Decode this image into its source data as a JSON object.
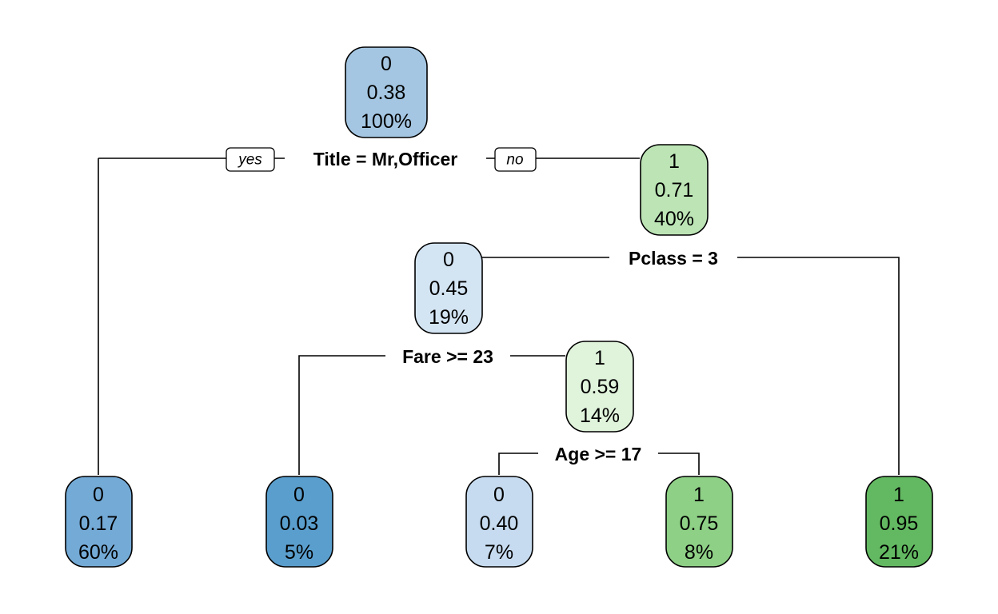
{
  "tree": {
    "nodes": {
      "root": {
        "class": "0",
        "prob": "0.38",
        "pct": "100%",
        "fill": "#a4c6e2"
      },
      "n_left": {
        "class": "0",
        "prob": "0.17",
        "pct": "60%",
        "fill": "#74aad6"
      },
      "n_right": {
        "class": "1",
        "prob": "0.71",
        "pct": "40%",
        "fill": "#bce4b5"
      },
      "n_pclass_left": {
        "class": "0",
        "prob": "0.45",
        "pct": "19%",
        "fill": "#d3e4f3"
      },
      "n_fare_left": {
        "class": "0",
        "prob": "0.03",
        "pct": "5%",
        "fill": "#5a9ecd"
      },
      "n_fare_right": {
        "class": "1",
        "prob": "0.59",
        "pct": "14%",
        "fill": "#e0f3db"
      },
      "n_age_left": {
        "class": "0",
        "prob": "0.40",
        "pct": "7%",
        "fill": "#c6dbef"
      },
      "n_age_right": {
        "class": "1",
        "prob": "0.75",
        "pct": "8%",
        "fill": "#8ed086"
      },
      "n_pclass_right": {
        "class": "1",
        "prob": "0.95",
        "pct": "21%",
        "fill": "#63b961"
      }
    },
    "splits": {
      "title": "Title =  Mr,Officer",
      "pclass": "Pclass = 3",
      "fare": "Fare >= 23",
      "age": "Age >= 17"
    },
    "branch_labels": {
      "yes": "yes",
      "no": "no"
    }
  }
}
